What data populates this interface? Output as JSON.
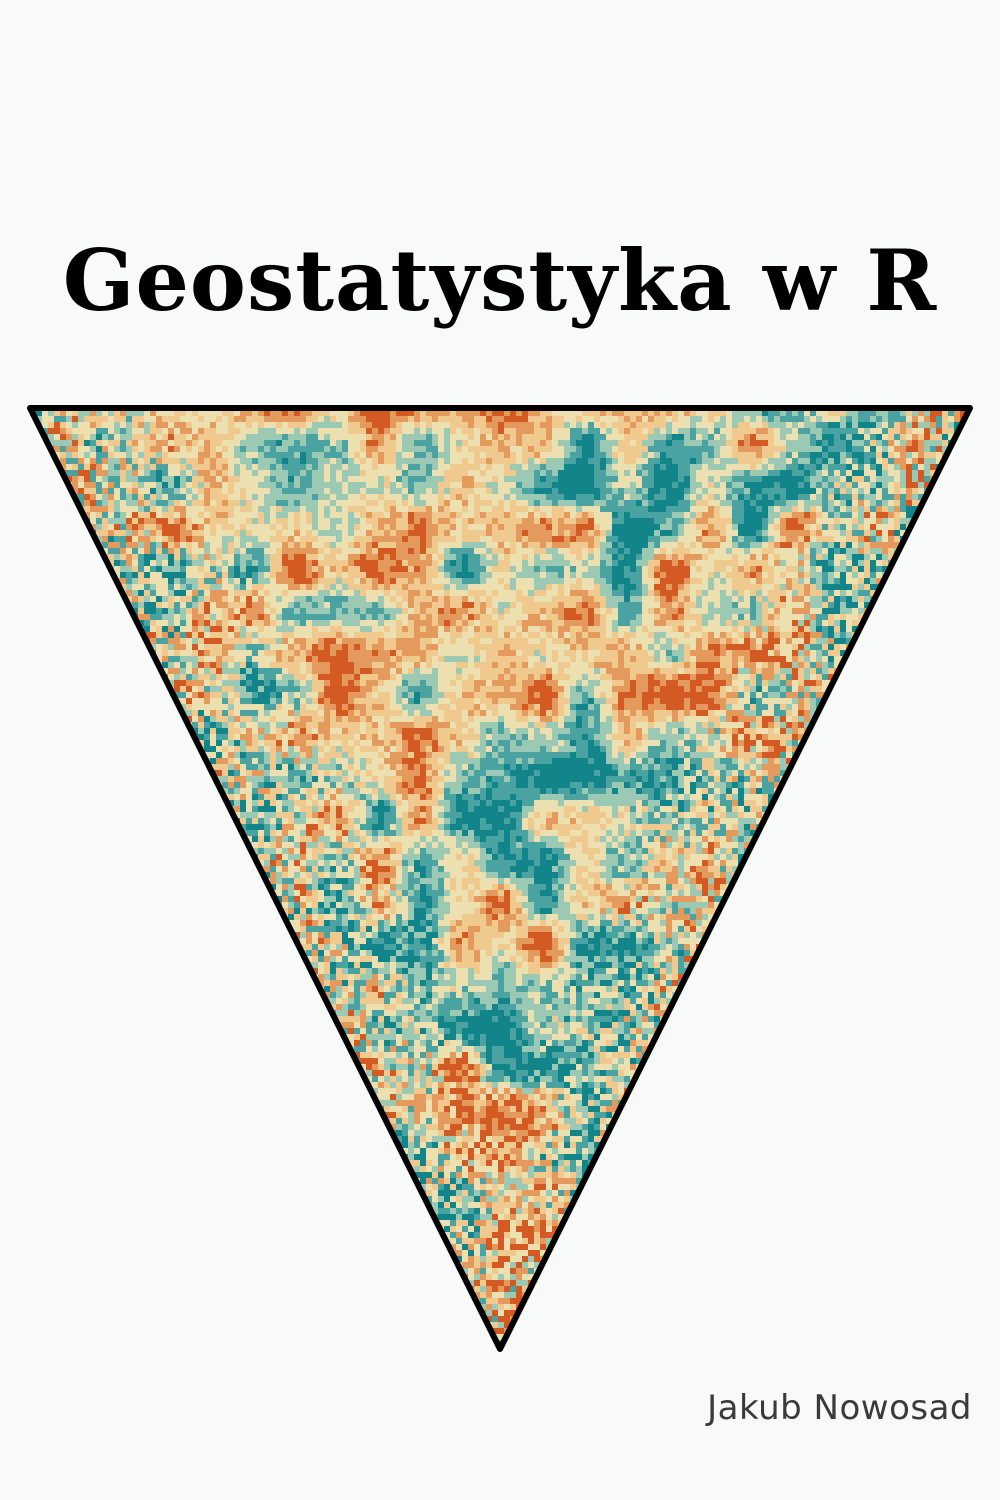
{
  "cover": {
    "title": "Geostatystyka w R",
    "author": "Jakub Nowosad"
  },
  "art": {
    "shape": "inverted-triangle",
    "palette": [
      "#12858a",
      "#4aa3a0",
      "#9cc9b4",
      "#ecdfb0",
      "#f0c98e",
      "#e39a5c",
      "#d45a24"
    ],
    "outline_color": "#000000",
    "background": "#f8faf9"
  }
}
